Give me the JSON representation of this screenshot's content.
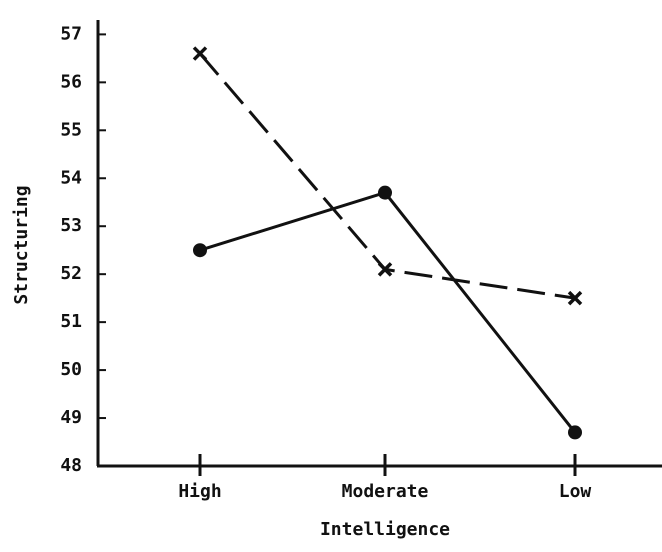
{
  "chart_data": {
    "type": "line",
    "x_label": "Intelligence",
    "y_label": "Structuring",
    "categories": [
      "High",
      "Moderate",
      "Low"
    ],
    "series": [
      {
        "color": "#111111",
        "marker": "circle",
        "dashed": false,
        "values": [
          52.5,
          53.7,
          48.7
        ]
      },
      {
        "color": "#111111",
        "marker": "x",
        "dashed": true,
        "values": [
          56.6,
          52.1,
          51.5
        ]
      }
    ],
    "ylim": [
      48,
      57.3
    ],
    "yticks": [
      48,
      49,
      50,
      51,
      52,
      53,
      54,
      55,
      56,
      57
    ],
    "grid": false
  }
}
